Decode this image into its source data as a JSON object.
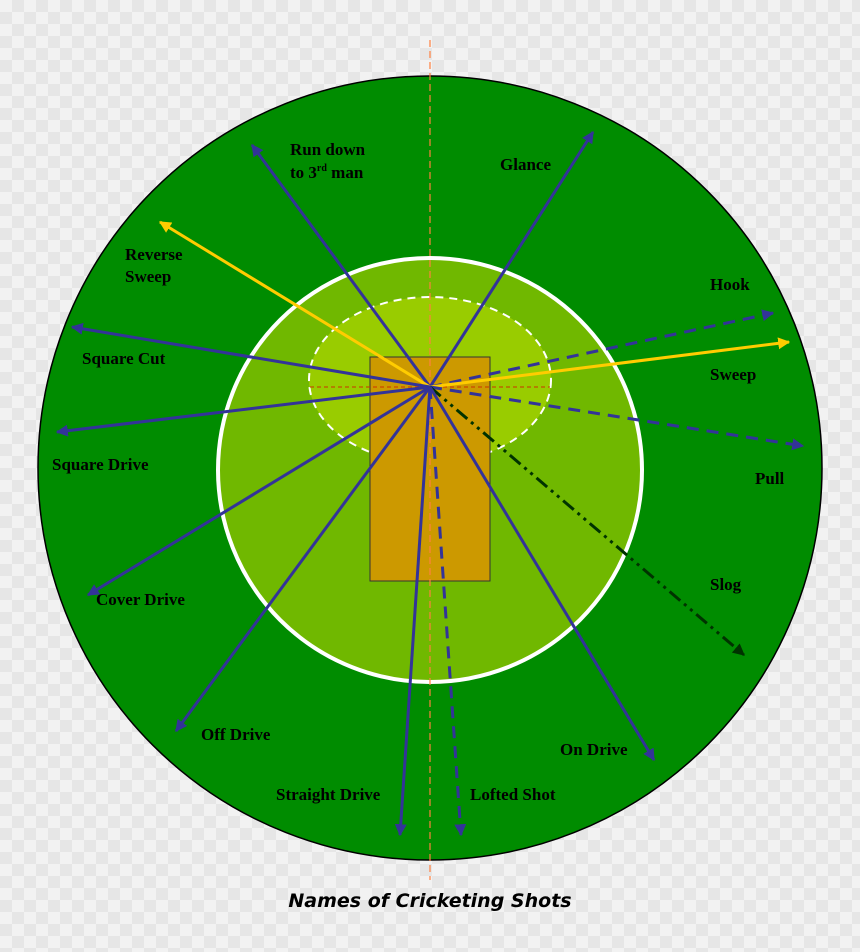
{
  "colors": {
    "outfield": "#008c00",
    "infield": "#70b800",
    "inner_ring": "#99cc00",
    "pitch": "#cc9900",
    "ground_shot": "#333399",
    "aerial_shot": "#ffcc00",
    "slog": "#003300",
    "center_line": "#ff8040"
  },
  "labels": {
    "run_down": "Run down",
    "run_down_to": "to 3",
    "run_down_sup": "rd",
    "run_down_man": " man",
    "glance": "Glance",
    "reverse_sweep_1": "Reverse",
    "reverse_sweep_2": "Sweep",
    "hook": "Hook",
    "square_cut": "Square Cut",
    "sweep": "Sweep",
    "square_drive": "Square Drive",
    "pull": "Pull",
    "slog": "Slog",
    "cover_drive": "Cover Drive",
    "off_drive": "Off Drive",
    "on_drive": "On Drive",
    "straight_drive": "Straight Drive",
    "lofted_shot": "Lofted Shot"
  },
  "caption": "Names of Cricketing Shots"
}
